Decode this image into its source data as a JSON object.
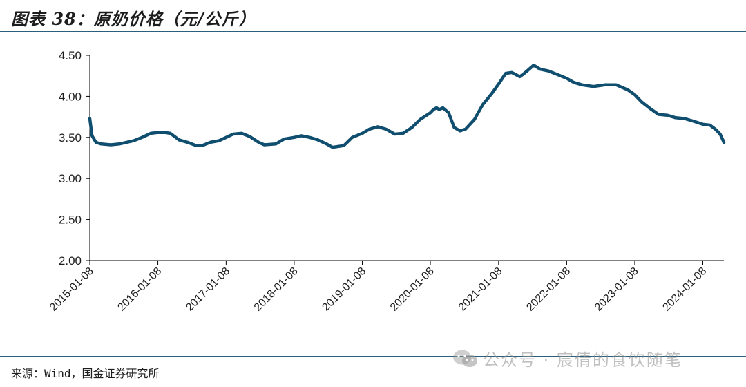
{
  "header": {
    "title": "图表 38：原奶价格（元/公斤）"
  },
  "footer": {
    "source": "来源：Wind，国金证券研究所",
    "watermark": "公众号 · 宸倩的食饮随笔"
  },
  "colors": {
    "line": "#0f4e6e",
    "rule": "#2b5f7a",
    "axis": "#000000"
  },
  "chart_data": {
    "type": "line",
    "title": "原奶价格（元/公斤）",
    "xlabel": "",
    "ylabel": "",
    "ylim": [
      2.0,
      4.5
    ],
    "yticks": [
      2.0,
      2.5,
      3.0,
      3.5,
      4.0,
      4.5
    ],
    "ytick_labels": [
      "2.00",
      "2.50",
      "3.00",
      "3.50",
      "4.00",
      "4.50"
    ],
    "xticks": [
      "2015-01-08",
      "2016-01-08",
      "2017-01-08",
      "2018-01-08",
      "2019-01-08",
      "2020-01-08",
      "2021-01-08",
      "2022-01-08",
      "2023-01-08",
      "2024-01-08"
    ],
    "xrange": [
      "2015-01-08",
      "2024-04-30"
    ],
    "grid": false,
    "legend": "none",
    "series": [
      {
        "x": [
          "2015-01-08",
          "2015-01-20",
          "2015-02-10",
          "2015-03-10",
          "2015-05-01",
          "2015-06-15",
          "2015-09-01",
          "2015-10-15",
          "2015-12-01",
          "2016-01-08",
          "2016-02-15",
          "2016-03-15",
          "2016-05-01",
          "2016-06-15",
          "2016-08-01",
          "2016-09-01",
          "2016-10-15",
          "2016-12-01",
          "2017-01-08",
          "2017-02-15",
          "2017-04-01",
          "2017-05-15",
          "2017-07-01",
          "2017-08-01",
          "2017-10-01",
          "2017-11-15",
          "2018-01-08",
          "2018-02-15",
          "2018-04-01",
          "2018-05-15",
          "2018-07-01",
          "2018-08-01",
          "2018-10-01",
          "2018-11-15",
          "2019-01-08",
          "2019-02-15",
          "2019-04-01",
          "2019-05-15",
          "2019-07-01",
          "2019-08-15",
          "2019-10-01",
          "2019-11-15",
          "2020-01-08",
          "2020-01-25",
          "2020-02-10",
          "2020-02-25",
          "2020-03-15",
          "2020-04-15",
          "2020-05-15",
          "2020-06-15",
          "2020-07-15",
          "2020-09-01",
          "2020-10-15",
          "2020-12-01",
          "2021-01-08",
          "2021-02-15",
          "2021-03-20",
          "2021-05-01",
          "2021-05-20",
          "2021-06-15",
          "2021-07-15",
          "2021-08-20",
          "2021-10-01",
          "2021-11-15",
          "2022-01-08",
          "2022-02-15",
          "2022-04-01",
          "2022-06-01",
          "2022-08-01",
          "2022-10-01",
          "2022-12-01",
          "2023-01-08",
          "2023-02-15",
          "2023-04-01",
          "2023-05-15",
          "2023-07-01",
          "2023-08-15",
          "2023-10-01",
          "2023-11-15",
          "2024-01-08",
          "2024-02-15",
          "2024-03-15",
          "2024-04-10",
          "2024-04-30"
        ],
        "y": [
          3.73,
          3.52,
          3.44,
          3.42,
          3.41,
          3.42,
          3.46,
          3.5,
          3.55,
          3.56,
          3.56,
          3.55,
          3.47,
          3.44,
          3.4,
          3.4,
          3.44,
          3.46,
          3.5,
          3.54,
          3.55,
          3.51,
          3.44,
          3.41,
          3.42,
          3.48,
          3.5,
          3.52,
          3.5,
          3.47,
          3.42,
          3.38,
          3.4,
          3.5,
          3.55,
          3.6,
          3.63,
          3.6,
          3.54,
          3.55,
          3.62,
          3.72,
          3.8,
          3.84,
          3.86,
          3.84,
          3.86,
          3.8,
          3.62,
          3.58,
          3.6,
          3.72,
          3.9,
          4.03,
          4.15,
          4.28,
          4.29,
          4.24,
          4.27,
          4.32,
          4.38,
          4.33,
          4.31,
          4.27,
          4.22,
          4.17,
          4.14,
          4.12,
          4.14,
          4.14,
          4.08,
          4.02,
          3.93,
          3.85,
          3.78,
          3.77,
          3.74,
          3.73,
          3.7,
          3.66,
          3.65,
          3.6,
          3.54,
          3.44
        ]
      }
    ]
  }
}
